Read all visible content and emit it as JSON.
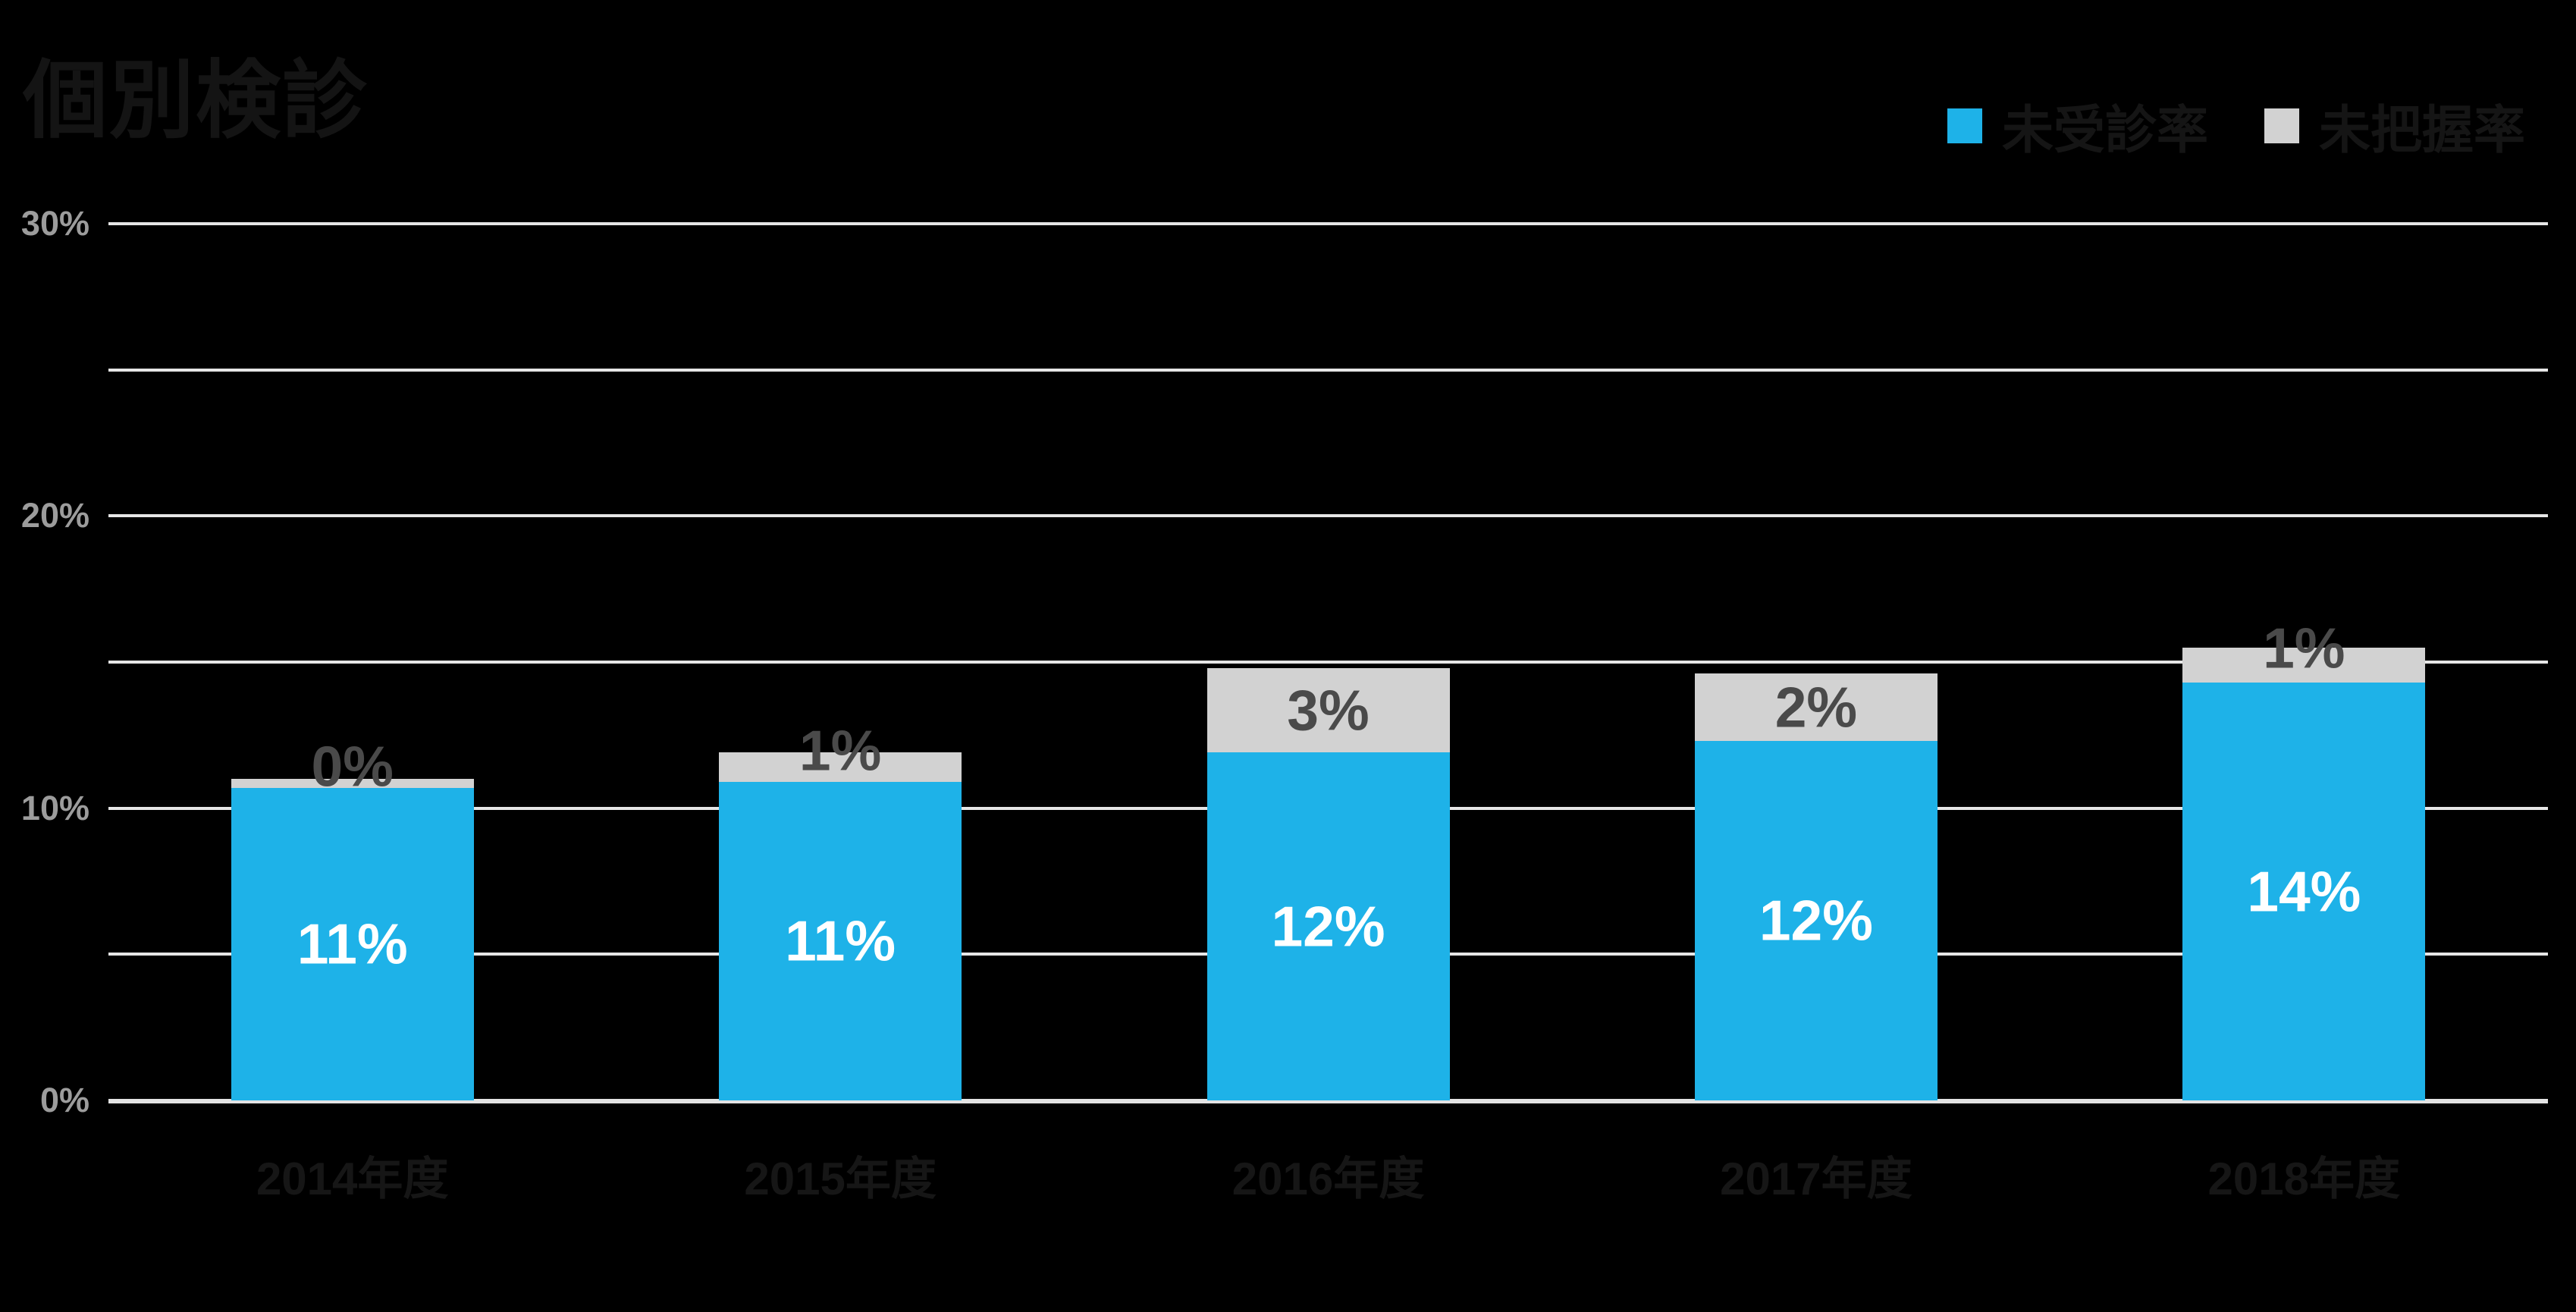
{
  "title": "個別検診",
  "legend": {
    "items": [
      {
        "label": "未受診率",
        "color": "#1EB2E8"
      },
      {
        "label": "未把握率",
        "color": "#D2D2D2"
      }
    ],
    "position": "top-right"
  },
  "y_axis": {
    "tick_labels": [
      "30%",
      "20%",
      "10%",
      "0%"
    ],
    "tick_values": [
      30,
      20,
      10,
      0
    ],
    "min": 0,
    "max": 30,
    "gridline_step_pct": 5,
    "tick_color": "#9C9C9C",
    "gridline_color": "#E6E6E6"
  },
  "chart_data": {
    "type": "bar",
    "stacked": true,
    "title": "個別検診",
    "categories": [
      "2014年度",
      "2015年度",
      "2016年度",
      "2017年度",
      "2018年度"
    ],
    "series": [
      {
        "name": "未受診率",
        "color": "#1EB2E8",
        "values": [
          11,
          11,
          12,
          12,
          14
        ],
        "data_labels": [
          "11%",
          "11%",
          "12%",
          "12%",
          "14%"
        ],
        "display_heights_pct": [
          10.7,
          10.9,
          11.9,
          12.3,
          14.3
        ],
        "label_color": "#FFFFFF"
      },
      {
        "name": "未把握率",
        "color": "#D2D2D2",
        "values": [
          0,
          1,
          3,
          2,
          1
        ],
        "data_labels": [
          "0%",
          "1%",
          "3%",
          "2%",
          "1%"
        ],
        "display_heights_pct": [
          0.3,
          1.0,
          2.9,
          2.3,
          1.2
        ],
        "label_color": "#4A4A4A"
      }
    ],
    "xlabel": "",
    "ylabel": "",
    "ylim": [
      0,
      30
    ],
    "grid": true,
    "legend_position": "top-right",
    "background_color": "#000000"
  }
}
